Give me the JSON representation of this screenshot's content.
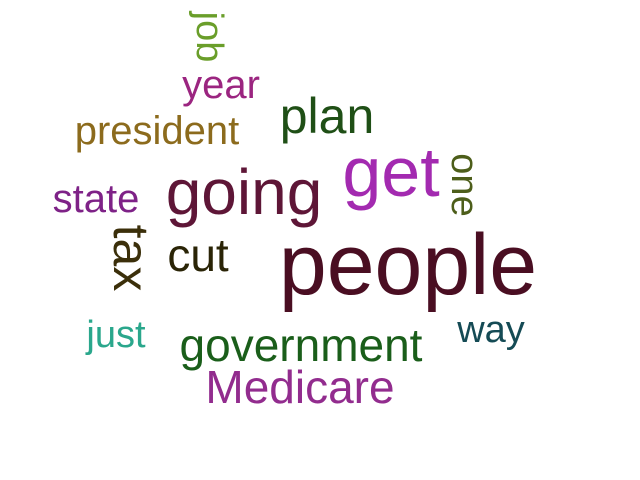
{
  "words": [
    {
      "id": "people",
      "text": "people",
      "color": "#4a0e22",
      "vertical": false
    },
    {
      "id": "get",
      "text": "get",
      "color": "#a32ab0",
      "vertical": false
    },
    {
      "id": "going",
      "text": "going",
      "color": "#5e1637",
      "vertical": false
    },
    {
      "id": "plan",
      "text": "plan",
      "color": "#1f4f16",
      "vertical": false
    },
    {
      "id": "president",
      "text": "president",
      "color": "#8c6b1d",
      "vertical": false
    },
    {
      "id": "year",
      "text": "year",
      "color": "#9b2580",
      "vertical": false
    },
    {
      "id": "job",
      "text": "job",
      "color": "#6a9e2a",
      "vertical": true
    },
    {
      "id": "state",
      "text": "state",
      "color": "#7e2287",
      "vertical": false
    },
    {
      "id": "tax",
      "text": "tax",
      "color": "#3b2f0a",
      "vertical": true
    },
    {
      "id": "cut",
      "text": "cut",
      "color": "#2a2406",
      "vertical": false
    },
    {
      "id": "one",
      "text": "one",
      "color": "#4d5e1a",
      "vertical": true
    },
    {
      "id": "just",
      "text": "just",
      "color": "#2aa78c",
      "vertical": false
    },
    {
      "id": "government",
      "text": "government",
      "color": "#1a5e1a",
      "vertical": false
    },
    {
      "id": "way",
      "text": "way",
      "color": "#154b55",
      "vertical": false
    },
    {
      "id": "medicare",
      "text": "Medicare",
      "color": "#922c8e",
      "vertical": false
    }
  ]
}
